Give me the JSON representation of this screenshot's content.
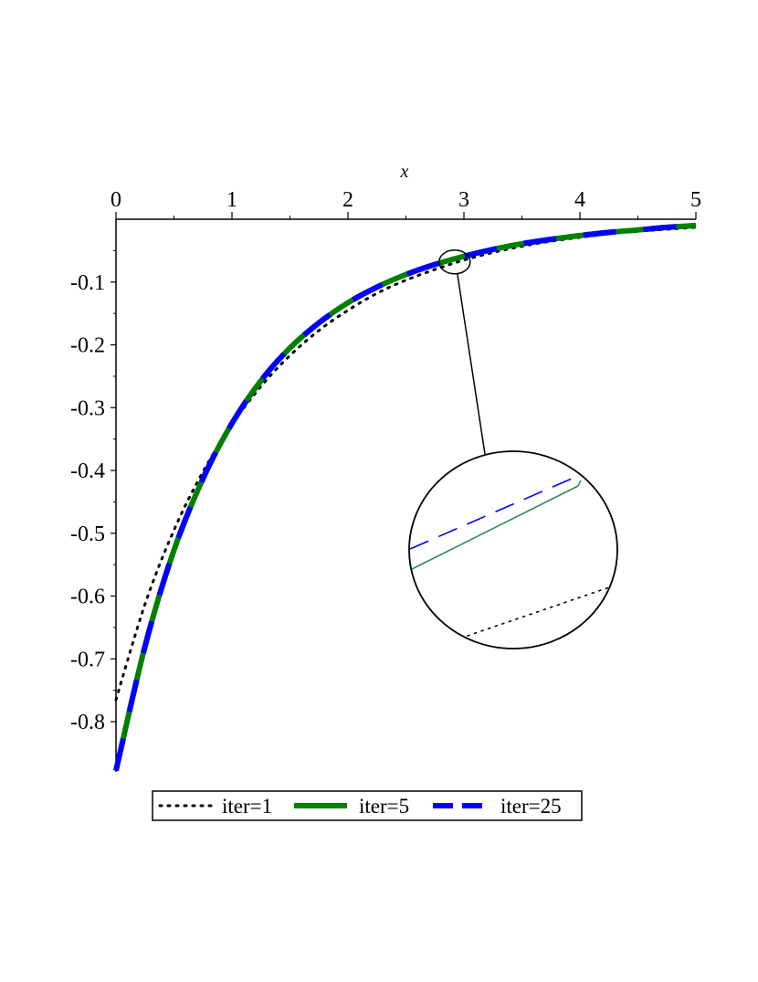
{
  "chart_data": {
    "type": "line",
    "title": "",
    "xlabel": "x",
    "ylabel": "",
    "xlim": [
      0,
      5
    ],
    "ylim": [
      -0.88,
      0
    ],
    "x_ticks": [
      0,
      1,
      2,
      3,
      4,
      5
    ],
    "x_tick_labels": [
      "0",
      "1",
      "2",
      "3",
      "4",
      "5"
    ],
    "y_ticks": [
      -0.1,
      -0.2,
      -0.3,
      -0.4,
      -0.5,
      -0.6,
      -0.7,
      -0.8
    ],
    "y_tick_labels": [
      "-0.1",
      "-0.2",
      "-0.3",
      "-0.4",
      "-0.5",
      "-0.6",
      "-0.7",
      "-0.8"
    ],
    "x_axis_position": "top",
    "grid": false,
    "legend": "bottom",
    "x": [
      0,
      0.25,
      0.5,
      0.75,
      1,
      1.25,
      1.5,
      1.75,
      2,
      2.25,
      2.5,
      2.75,
      3,
      3.25,
      3.5,
      3.75,
      4,
      4.25,
      4.5,
      4.75,
      5
    ],
    "series": [
      {
        "name": "iter=1",
        "color": "#000000",
        "style": "dotted",
        "values": [
          -0.765,
          -0.613,
          -0.495,
          -0.402,
          -0.327,
          -0.266,
          -0.217,
          -0.177,
          -0.145,
          -0.118,
          -0.097,
          -0.08,
          -0.065,
          -0.053,
          -0.043,
          -0.035,
          -0.029,
          -0.023,
          -0.019,
          -0.016,
          -0.013
        ]
      },
      {
        "name": "iter=5",
        "color": "#008000",
        "style": "solid",
        "values": [
          -0.878,
          -0.68,
          -0.527,
          -0.413,
          -0.325,
          -0.257,
          -0.205,
          -0.165,
          -0.133,
          -0.108,
          -0.088,
          -0.072,
          -0.059,
          -0.048,
          -0.039,
          -0.032,
          -0.026,
          -0.021,
          -0.017,
          -0.013,
          -0.01
        ]
      },
      {
        "name": "iter=25",
        "color": "#0000ff",
        "style": "dashed",
        "values": [
          -0.878,
          -0.68,
          -0.527,
          -0.413,
          -0.325,
          -0.257,
          -0.205,
          -0.165,
          -0.133,
          -0.108,
          -0.088,
          -0.072,
          -0.059,
          -0.048,
          -0.039,
          -0.032,
          -0.026,
          -0.021,
          -0.017,
          -0.013,
          -0.01
        ]
      }
    ],
    "annotation": {
      "type": "zoom-inset",
      "focus_x": 2.92,
      "focus_y": -0.068
    }
  }
}
